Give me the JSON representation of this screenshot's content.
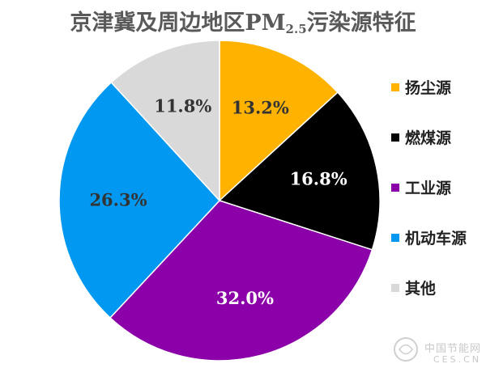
{
  "chart_data": {
    "type": "pie",
    "title_main": "京津冀及周边地区PM",
    "title_sub": "2.5",
    "title_end": "污染源特征",
    "start_angle_deg": 0,
    "direction": "clockwise",
    "legend_position": "right",
    "slices": [
      {
        "label": "扬尘源",
        "value": 13.2,
        "display": "13.2%",
        "color": "#FFB300",
        "label_color": "#333333"
      },
      {
        "label": "燃煤源",
        "value": 16.8,
        "display": "16.8%",
        "color": "#000000",
        "label_color": "#ffffff"
      },
      {
        "label": "工业源",
        "value": 32.0,
        "display": "32.0%",
        "color": "#8B00A8",
        "label_color": "#ffffff"
      },
      {
        "label": "机动车源",
        "value": 26.3,
        "display": "26.3%",
        "color": "#0098F0",
        "label_color": "#333333"
      },
      {
        "label": "其他",
        "value": 11.8,
        "display": "11.8%",
        "color": "#D9D9D9",
        "label_color": "#333333"
      }
    ]
  },
  "watermark": {
    "cn": "中国节能网",
    "en": "CES.CN"
  }
}
